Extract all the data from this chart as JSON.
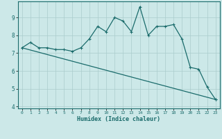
{
  "xlabel": "Humidex (Indice chaleur)",
  "ylabel": "",
  "bg_color": "#cce8e8",
  "line_color": "#1a6b6b",
  "grid_color": "#aacccc",
  "xlim": [
    -0.5,
    23.5
  ],
  "ylim": [
    3.9,
    9.9
  ],
  "yticks": [
    4,
    5,
    6,
    7,
    8,
    9
  ],
  "xticks": [
    0,
    1,
    2,
    3,
    4,
    5,
    6,
    7,
    8,
    9,
    10,
    11,
    12,
    13,
    14,
    15,
    16,
    17,
    18,
    19,
    20,
    21,
    22,
    23
  ],
  "upper_line": {
    "x": [
      0,
      1,
      2,
      3,
      4,
      5,
      6,
      7,
      8,
      9,
      10,
      11,
      12,
      13,
      14,
      15,
      16,
      17,
      18,
      19,
      20,
      21,
      22,
      23
    ],
    "y": [
      7.3,
      7.6,
      7.3,
      7.3,
      7.2,
      7.2,
      7.1,
      7.3,
      7.8,
      8.5,
      8.2,
      9.0,
      8.8,
      8.2,
      9.6,
      8.0,
      8.5,
      8.5,
      8.6,
      7.8,
      6.2,
      6.1,
      5.1,
      4.4
    ]
  },
  "lower_line": {
    "x": [
      0,
      23
    ],
    "y": [
      7.3,
      4.4
    ]
  }
}
